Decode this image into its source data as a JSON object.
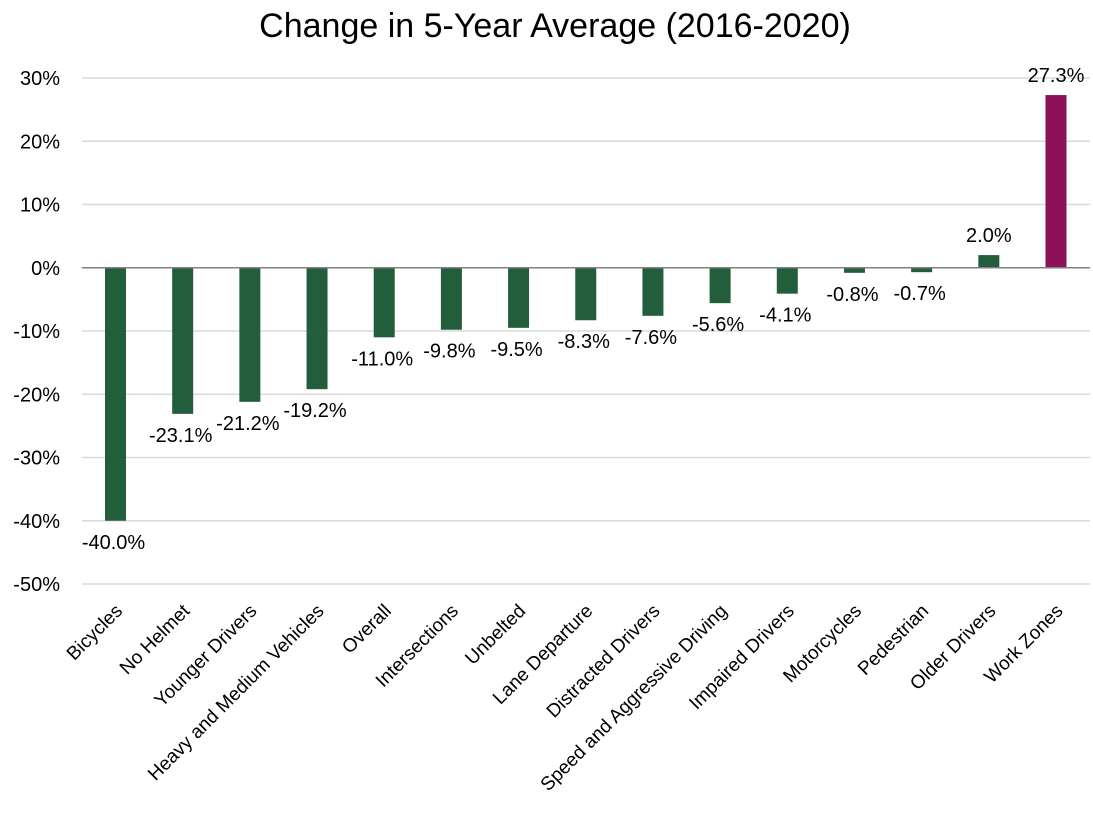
{
  "chart_data": {
    "type": "bar",
    "title": "Change in 5-Year Average (2016-2020)",
    "xlabel": "",
    "ylabel": "",
    "ylim": [
      -50,
      30
    ],
    "yticks": [
      30,
      20,
      10,
      0,
      -10,
      -20,
      -30,
      -40,
      -50
    ],
    "ytick_labels": [
      "30%",
      "20%",
      "10%",
      "0%",
      "-10%",
      "-20%",
      "-30%",
      "-40%",
      "-50%"
    ],
    "grid": true,
    "legend": "none",
    "categories": [
      "Bicycles",
      "No Helmet",
      "Younger Drivers",
      "Heavy and Medium Vehicles",
      "Overall",
      "Intersections",
      "Unbelted",
      "Lane Departure",
      "Distracted Drivers",
      "Speed and Aggressive Driving",
      "Impaired Drivers",
      "Motorcycles",
      "Pedestrian",
      "Older Drivers",
      "Work Zones"
    ],
    "values": [
      -40.0,
      -23.1,
      -21.2,
      -19.2,
      -11.0,
      -9.8,
      -9.5,
      -8.3,
      -7.6,
      -5.6,
      -4.1,
      -0.8,
      -0.7,
      2.0,
      27.3
    ],
    "data_labels": [
      "-40.0%",
      "-23.1%",
      "-21.2%",
      "-19.2%",
      "-11.0%",
      "-9.8%",
      "-9.5%",
      "-8.3%",
      "-7.6%",
      "-5.6%",
      "-4.1%",
      "-0.8%",
      "-0.7%",
      "2.0%",
      "27.3%"
    ],
    "colors": {
      "default_bar": "#225e3b",
      "highlight_bar": "#8b1158",
      "highlight_category": "Work Zones"
    }
  }
}
